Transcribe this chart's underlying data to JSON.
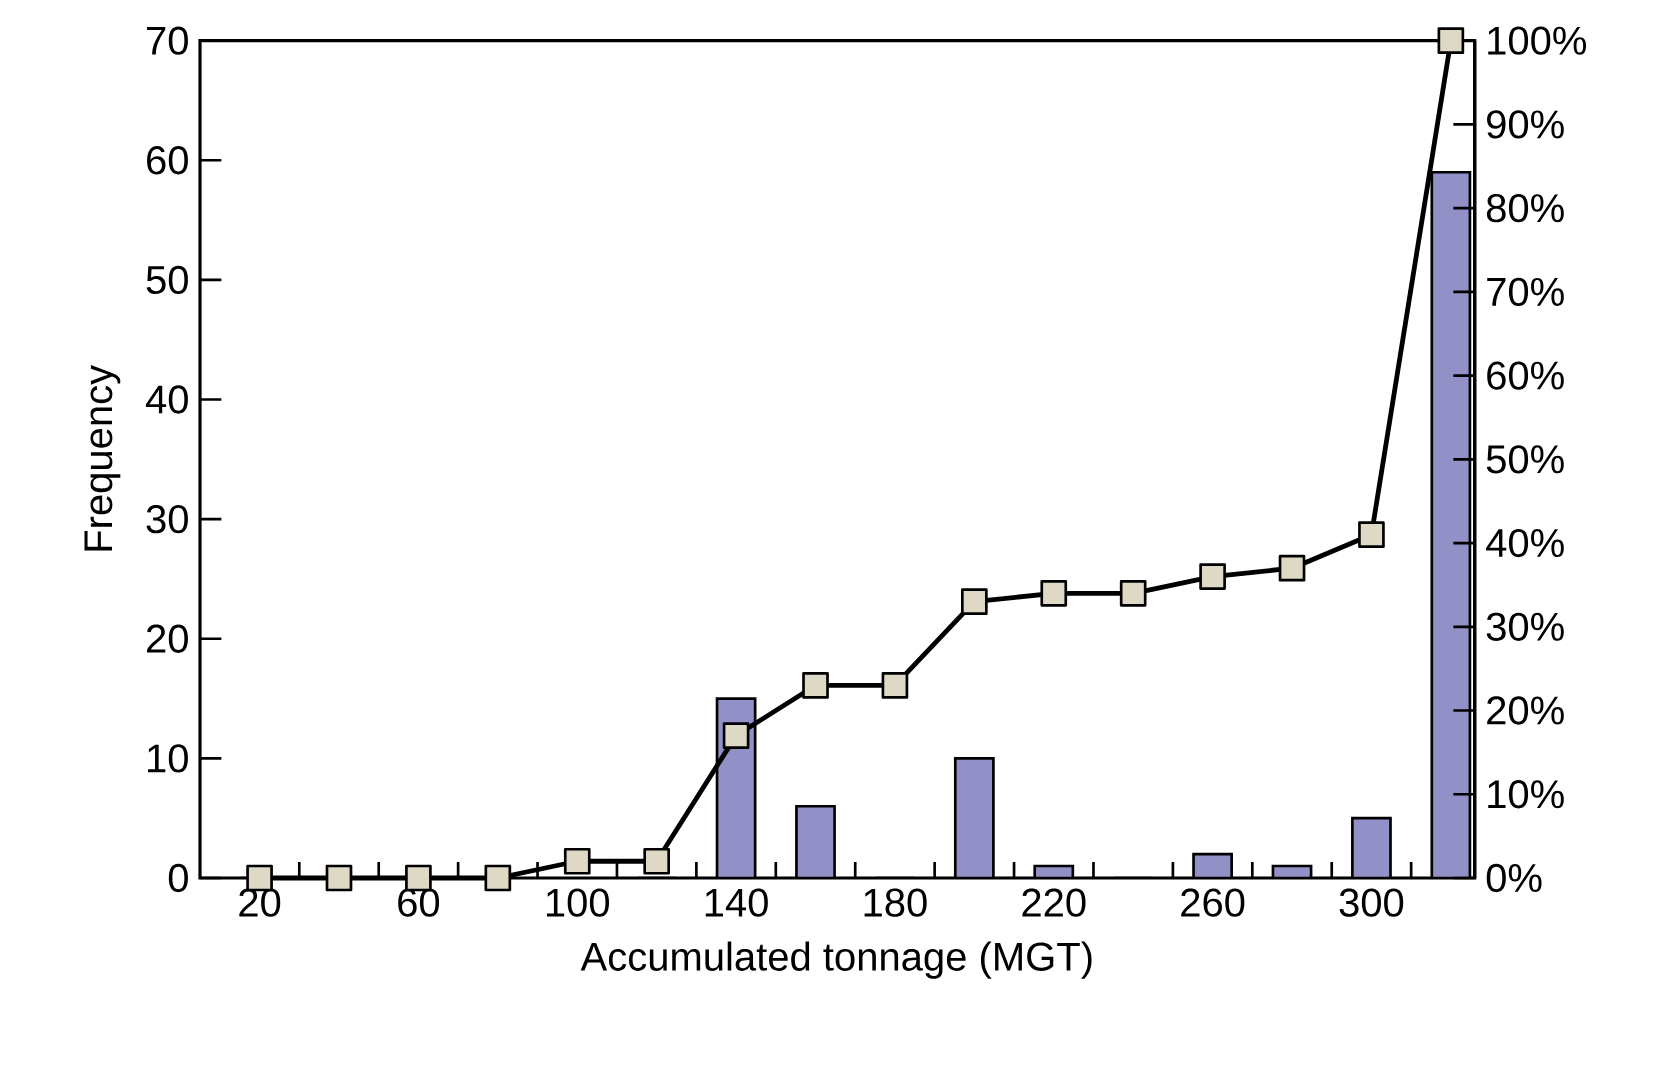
{
  "chart_data": {
    "type": "bar",
    "xlabel": "Accumulated tonnage (MGT)",
    "ylabel": "Frequency",
    "categories": [
      "20",
      null,
      "60",
      null,
      "100",
      null,
      "140",
      null,
      "180",
      null,
      "220",
      null,
      "260",
      null,
      "300",
      null
    ],
    "series": [
      {
        "color": "#9191c8",
        "values": [
          0,
          0,
          0,
          0,
          null,
          0,
          15,
          6,
          0,
          10,
          1,
          0,
          2,
          1,
          5,
          59
        ]
      },
      {
        "type": "line",
        "axis": "y2",
        "color": "#000000",
        "values": [
          0,
          0,
          0,
          0,
          2,
          2,
          17,
          23,
          23,
          33,
          34,
          34,
          36,
          37,
          41,
          100
        ]
      }
    ],
    "marker": "square",
    "line_style": "solid",
    "grid": false,
    "ylim": [
      0,
      70
    ],
    "yticks": [
      0,
      10,
      20,
      30,
      40,
      50,
      60,
      70
    ],
    "y2lim": [
      0,
      100
    ],
    "y2ticks": [
      {
        "value": 0,
        "label": "0%"
      },
      {
        "value": 10,
        "label": "10%"
      },
      {
        "value": 20,
        "label": "20%"
      },
      {
        "value": 30,
        "label": "30%"
      },
      {
        "value": 40,
        "label": "40%"
      },
      {
        "value": 50,
        "label": "50%"
      },
      {
        "value": 60,
        "label": "60%"
      },
      {
        "value": 70,
        "label": "70%"
      },
      {
        "value": 80,
        "label": "80%"
      },
      {
        "value": 90,
        "label": "90%"
      },
      {
        "value": 100,
        "label": "100%"
      }
    ]
  }
}
